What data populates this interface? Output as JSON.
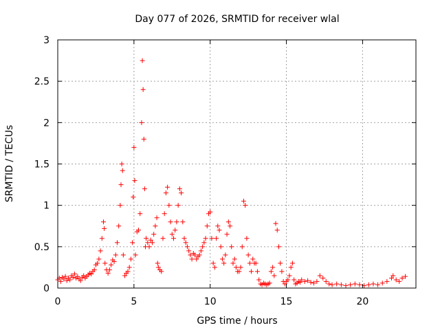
{
  "chart_data": {
    "type": "scatter",
    "title": "Day 077 of 2026, SRMTID for receiver wlal",
    "xlabel": "GPS time / hours",
    "ylabel": "SRMTID / TECUs",
    "xlim": [
      0,
      23.5
    ],
    "ylim": [
      0,
      3
    ],
    "xticks": [
      0,
      5,
      10,
      15,
      20
    ],
    "yticks": [
      0,
      0.5,
      1,
      1.5,
      2,
      2.5,
      3
    ],
    "ytick_labels": [
      "0",
      "0.5",
      "1",
      "1.5",
      "2",
      "2.5",
      "3"
    ],
    "grid": true,
    "marker": "+",
    "series": [
      {
        "name": "SRMTID",
        "color": "#ff0000",
        "points": [
          [
            0.0,
            0.1
          ],
          [
            0.1,
            0.12
          ],
          [
            0.2,
            0.08
          ],
          [
            0.3,
            0.13
          ],
          [
            0.4,
            0.11
          ],
          [
            0.5,
            0.14
          ],
          [
            0.6,
            0.09
          ],
          [
            0.7,
            0.12
          ],
          [
            0.8,
            0.1
          ],
          [
            0.9,
            0.15
          ],
          [
            1.0,
            0.13
          ],
          [
            1.1,
            0.17
          ],
          [
            1.2,
            0.12
          ],
          [
            1.3,
            0.14
          ],
          [
            1.4,
            0.11
          ],
          [
            1.5,
            0.09
          ],
          [
            1.6,
            0.13
          ],
          [
            1.7,
            0.15
          ],
          [
            1.8,
            0.12
          ],
          [
            1.9,
            0.14
          ],
          [
            2.0,
            0.16
          ],
          [
            2.1,
            0.18
          ],
          [
            2.2,
            0.17
          ],
          [
            2.3,
            0.2
          ],
          [
            2.4,
            0.22
          ],
          [
            2.5,
            0.28
          ],
          [
            2.6,
            0.3
          ],
          [
            2.7,
            0.35
          ],
          [
            2.8,
            0.45
          ],
          [
            2.9,
            0.6
          ],
          [
            3.0,
            0.8
          ],
          [
            3.05,
            0.72
          ],
          [
            3.1,
            0.3
          ],
          [
            3.2,
            0.22
          ],
          [
            3.3,
            0.18
          ],
          [
            3.4,
            0.22
          ],
          [
            3.5,
            0.28
          ],
          [
            3.6,
            0.34
          ],
          [
            3.7,
            0.32
          ],
          [
            3.8,
            0.4
          ],
          [
            3.9,
            0.55
          ],
          [
            4.0,
            0.75
          ],
          [
            4.1,
            1.0
          ],
          [
            4.15,
            1.25
          ],
          [
            4.2,
            1.5
          ],
          [
            4.25,
            1.42
          ],
          [
            4.3,
            0.4
          ],
          [
            4.4,
            0.15
          ],
          [
            4.5,
            0.18
          ],
          [
            4.6,
            0.2
          ],
          [
            4.7,
            0.25
          ],
          [
            4.8,
            0.35
          ],
          [
            4.9,
            0.55
          ],
          [
            4.95,
            1.1
          ],
          [
            5.0,
            1.7
          ],
          [
            5.05,
            1.3
          ],
          [
            5.1,
            0.4
          ],
          [
            5.2,
            0.68
          ],
          [
            5.3,
            0.7
          ],
          [
            5.4,
            0.9
          ],
          [
            5.5,
            2.0
          ],
          [
            5.55,
            2.75
          ],
          [
            5.6,
            2.4
          ],
          [
            5.65,
            1.8
          ],
          [
            5.7,
            1.2
          ],
          [
            5.75,
            0.5
          ],
          [
            5.8,
            0.6
          ],
          [
            5.9,
            0.55
          ],
          [
            6.0,
            0.5
          ],
          [
            6.1,
            0.58
          ],
          [
            6.2,
            0.55
          ],
          [
            6.3,
            0.65
          ],
          [
            6.4,
            0.75
          ],
          [
            6.5,
            0.85
          ],
          [
            6.55,
            0.3
          ],
          [
            6.6,
            0.25
          ],
          [
            6.7,
            0.22
          ],
          [
            6.8,
            0.2
          ],
          [
            6.9,
            0.6
          ],
          [
            7.0,
            0.9
          ],
          [
            7.1,
            1.15
          ],
          [
            7.2,
            1.22
          ],
          [
            7.3,
            1.0
          ],
          [
            7.4,
            0.8
          ],
          [
            7.5,
            0.65
          ],
          [
            7.6,
            0.6
          ],
          [
            7.7,
            0.7
          ],
          [
            7.8,
            0.8
          ],
          [
            7.9,
            1.0
          ],
          [
            8.0,
            1.2
          ],
          [
            8.1,
            1.15
          ],
          [
            8.2,
            0.8
          ],
          [
            8.3,
            0.6
          ],
          [
            8.4,
            0.55
          ],
          [
            8.5,
            0.5
          ],
          [
            8.6,
            0.45
          ],
          [
            8.7,
            0.4
          ],
          [
            8.8,
            0.35
          ],
          [
            8.9,
            0.42
          ],
          [
            9.0,
            0.4
          ],
          [
            9.1,
            0.35
          ],
          [
            9.2,
            0.38
          ],
          [
            9.3,
            0.4
          ],
          [
            9.4,
            0.45
          ],
          [
            9.5,
            0.5
          ],
          [
            9.6,
            0.55
          ],
          [
            9.7,
            0.6
          ],
          [
            9.8,
            0.75
          ],
          [
            9.9,
            0.9
          ],
          [
            10.0,
            0.92
          ],
          [
            10.1,
            0.6
          ],
          [
            10.2,
            0.3
          ],
          [
            10.3,
            0.25
          ],
          [
            10.4,
            0.6
          ],
          [
            10.5,
            0.75
          ],
          [
            10.6,
            0.7
          ],
          [
            10.7,
            0.5
          ],
          [
            10.8,
            0.35
          ],
          [
            10.9,
            0.3
          ],
          [
            11.0,
            0.4
          ],
          [
            11.1,
            0.65
          ],
          [
            11.2,
            0.8
          ],
          [
            11.3,
            0.75
          ],
          [
            11.4,
            0.5
          ],
          [
            11.5,
            0.3
          ],
          [
            11.6,
            0.35
          ],
          [
            11.7,
            0.25
          ],
          [
            11.8,
            0.2
          ],
          [
            11.9,
            0.2
          ],
          [
            12.0,
            0.25
          ],
          [
            12.1,
            0.5
          ],
          [
            12.2,
            1.05
          ],
          [
            12.3,
            1.0
          ],
          [
            12.4,
            0.6
          ],
          [
            12.5,
            0.4
          ],
          [
            12.6,
            0.3
          ],
          [
            12.7,
            0.2
          ],
          [
            12.8,
            0.35
          ],
          [
            12.9,
            0.3
          ],
          [
            13.0,
            0.3
          ],
          [
            13.1,
            0.2
          ],
          [
            13.2,
            0.1
          ],
          [
            13.3,
            0.05
          ],
          [
            13.4,
            0.04
          ],
          [
            13.5,
            0.06
          ],
          [
            13.6,
            0.05
          ],
          [
            13.7,
            0.04
          ],
          [
            13.8,
            0.05
          ],
          [
            13.9,
            0.06
          ],
          [
            14.0,
            0.2
          ],
          [
            14.1,
            0.25
          ],
          [
            14.2,
            0.15
          ],
          [
            14.3,
            0.78
          ],
          [
            14.4,
            0.7
          ],
          [
            14.5,
            0.5
          ],
          [
            14.6,
            0.3
          ],
          [
            14.7,
            0.2
          ],
          [
            14.8,
            0.08
          ],
          [
            14.9,
            0.05
          ],
          [
            15.0,
            0.08
          ],
          [
            15.1,
            0.1
          ],
          [
            15.2,
            0.15
          ],
          [
            15.3,
            0.25
          ],
          [
            15.4,
            0.3
          ],
          [
            15.5,
            0.1
          ],
          [
            15.6,
            0.05
          ],
          [
            15.7,
            0.06
          ],
          [
            15.8,
            0.08
          ],
          [
            15.9,
            0.07
          ],
          [
            16.0,
            0.1
          ],
          [
            16.2,
            0.08
          ],
          [
            16.4,
            0.09
          ],
          [
            16.6,
            0.07
          ],
          [
            16.8,
            0.06
          ],
          [
            17.0,
            0.08
          ],
          [
            17.2,
            0.15
          ],
          [
            17.4,
            0.12
          ],
          [
            17.6,
            0.08
          ],
          [
            17.8,
            0.05
          ],
          [
            18.0,
            0.04
          ],
          [
            18.3,
            0.05
          ],
          [
            18.6,
            0.04
          ],
          [
            18.9,
            0.03
          ],
          [
            19.2,
            0.04
          ],
          [
            19.5,
            0.05
          ],
          [
            19.8,
            0.04
          ],
          [
            20.1,
            0.03
          ],
          [
            20.4,
            0.04
          ],
          [
            20.7,
            0.05
          ],
          [
            21.0,
            0.04
          ],
          [
            21.3,
            0.06
          ],
          [
            21.6,
            0.08
          ],
          [
            21.9,
            0.12
          ],
          [
            22.0,
            0.15
          ],
          [
            22.2,
            0.1
          ],
          [
            22.4,
            0.08
          ],
          [
            22.6,
            0.12
          ],
          [
            22.8,
            0.14
          ]
        ]
      }
    ]
  }
}
